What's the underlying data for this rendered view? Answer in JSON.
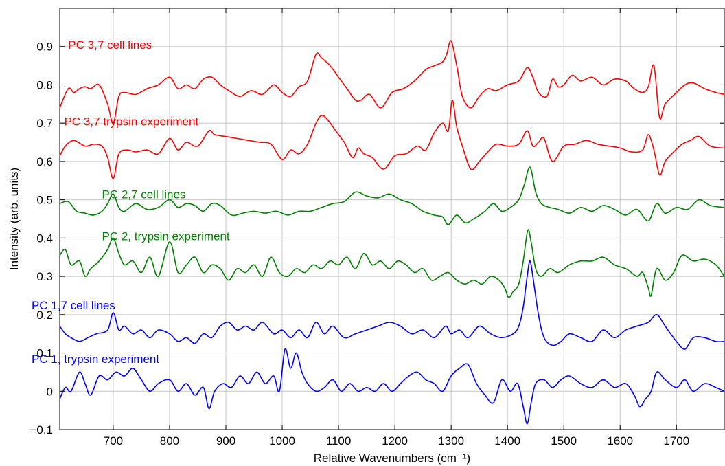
{
  "chart_data": {
    "type": "line",
    "xlabel": "Relative Wavenumbers (cm⁻¹)",
    "ylabel": "Intensity (arb. units)",
    "xlim": [
      605,
      1785
    ],
    "ylim": [
      -0.1,
      1.0
    ],
    "xticks": [
      700,
      800,
      900,
      1000,
      1100,
      1200,
      1300,
      1400,
      1500,
      1600,
      1700
    ],
    "xtick_labels": [
      "700",
      "800",
      "900",
      "1000",
      "1100",
      "1200",
      "1300",
      "1400",
      "1500",
      "1600",
      "1700"
    ],
    "yticks": [
      -0.1,
      0,
      0.1,
      0.2,
      0.3,
      0.4,
      0.5,
      0.6,
      0.7,
      0.8,
      0.9
    ],
    "ytick_labels": [
      "−0.1",
      "0",
      "0.1",
      "0.2",
      "0.3",
      "0.4",
      "0.5",
      "0.6",
      "0.7",
      "0.8",
      "0.9"
    ],
    "grid": true,
    "colors": {
      "red": "#ff0000",
      "green": "#008000",
      "blue": "#0000ff"
    },
    "series": [
      {
        "name": "PC 3,7 cell lines",
        "color": "red",
        "x": [
          605,
          620,
          630,
          640,
          650,
          660,
          675,
          690,
          700,
          710,
          720,
          740,
          760,
          780,
          800,
          815,
          830,
          845,
          860,
          875,
          890,
          905,
          925,
          945,
          965,
          985,
          1000,
          1015,
          1030,
          1045,
          1060,
          1070,
          1085,
          1100,
          1115,
          1130,
          1140,
          1155,
          1175,
          1195,
          1215,
          1235,
          1255,
          1270,
          1285,
          1292,
          1300,
          1310,
          1320,
          1335,
          1350,
          1365,
          1380,
          1400,
          1420,
          1435,
          1445,
          1455,
          1470,
          1480,
          1490,
          1500,
          1515,
          1530,
          1550,
          1570,
          1590,
          1610,
          1625,
          1640,
          1650,
          1660,
          1670,
          1680,
          1700,
          1715,
          1730,
          1750,
          1770,
          1785
        ],
        "y": [
          0.74,
          0.79,
          0.78,
          0.79,
          0.795,
          0.79,
          0.8,
          0.75,
          0.7,
          0.77,
          0.78,
          0.775,
          0.79,
          0.8,
          0.82,
          0.79,
          0.8,
          0.79,
          0.815,
          0.82,
          0.8,
          0.785,
          0.77,
          0.785,
          0.775,
          0.8,
          0.78,
          0.77,
          0.795,
          0.81,
          0.88,
          0.87,
          0.85,
          0.82,
          0.79,
          0.76,
          0.76,
          0.775,
          0.74,
          0.78,
          0.79,
          0.81,
          0.84,
          0.85,
          0.86,
          0.88,
          0.915,
          0.85,
          0.77,
          0.74,
          0.77,
          0.79,
          0.785,
          0.8,
          0.81,
          0.845,
          0.82,
          0.78,
          0.77,
          0.815,
          0.795,
          0.8,
          0.825,
          0.81,
          0.82,
          0.8,
          0.815,
          0.81,
          0.79,
          0.78,
          0.795,
          0.85,
          0.715,
          0.75,
          0.78,
          0.8,
          0.805,
          0.79,
          0.78,
          0.775
        ]
      },
      {
        "name": "PC 3,7 trypsin experiment",
        "color": "red",
        "x": [
          605,
          615,
          630,
          650,
          665,
          680,
          690,
          700,
          710,
          725,
          740,
          760,
          780,
          800,
          815,
          830,
          850,
          870,
          880,
          900,
          920,
          940,
          960,
          980,
          1000,
          1015,
          1030,
          1045,
          1060,
          1070,
          1080,
          1095,
          1110,
          1125,
          1135,
          1145,
          1160,
          1180,
          1200,
          1220,
          1240,
          1255,
          1270,
          1285,
          1295,
          1302,
          1310,
          1320,
          1335,
          1350,
          1365,
          1380,
          1400,
          1420,
          1435,
          1445,
          1455,
          1465,
          1480,
          1500,
          1520,
          1540,
          1560,
          1580,
          1600,
          1620,
          1640,
          1650,
          1660,
          1670,
          1680,
          1695,
          1710,
          1725,
          1740,
          1760,
          1785
        ],
        "y": [
          0.615,
          0.64,
          0.655,
          0.64,
          0.645,
          0.64,
          0.61,
          0.555,
          0.62,
          0.63,
          0.625,
          0.63,
          0.62,
          0.66,
          0.63,
          0.65,
          0.64,
          0.68,
          0.67,
          0.665,
          0.66,
          0.655,
          0.65,
          0.645,
          0.605,
          0.63,
          0.62,
          0.645,
          0.7,
          0.72,
          0.71,
          0.68,
          0.65,
          0.61,
          0.635,
          0.62,
          0.61,
          0.58,
          0.615,
          0.62,
          0.64,
          0.63,
          0.675,
          0.7,
          0.68,
          0.76,
          0.69,
          0.64,
          0.58,
          0.6,
          0.625,
          0.645,
          0.64,
          0.645,
          0.68,
          0.64,
          0.65,
          0.66,
          0.6,
          0.64,
          0.645,
          0.655,
          0.645,
          0.64,
          0.635,
          0.625,
          0.63,
          0.67,
          0.63,
          0.565,
          0.6,
          0.625,
          0.645,
          0.655,
          0.665,
          0.64,
          0.635
        ]
      },
      {
        "name": "PC 2,7 cell lines",
        "color": "green",
        "x": [
          605,
          620,
          635,
          650,
          665,
          680,
          690,
          700,
          710,
          720,
          740,
          760,
          780,
          800,
          815,
          830,
          845,
          860,
          875,
          890,
          910,
          930,
          950,
          970,
          990,
          1010,
          1030,
          1050,
          1070,
          1090,
          1110,
          1130,
          1150,
          1170,
          1190,
          1210,
          1230,
          1250,
          1270,
          1285,
          1295,
          1310,
          1325,
          1340,
          1360,
          1375,
          1390,
          1405,
          1420,
          1430,
          1440,
          1450,
          1460,
          1475,
          1490,
          1510,
          1530,
          1550,
          1570,
          1590,
          1610,
          1630,
          1650,
          1665,
          1680,
          1700,
          1720,
          1740,
          1760,
          1785
        ],
        "y": [
          0.49,
          0.495,
          0.47,
          0.465,
          0.46,
          0.47,
          0.49,
          0.515,
          0.48,
          0.47,
          0.49,
          0.475,
          0.48,
          0.5,
          0.48,
          0.49,
          0.485,
          0.47,
          0.49,
          0.485,
          0.46,
          0.465,
          0.47,
          0.465,
          0.47,
          0.46,
          0.47,
          0.47,
          0.48,
          0.49,
          0.495,
          0.52,
          0.51,
          0.505,
          0.515,
          0.5,
          0.49,
          0.47,
          0.46,
          0.455,
          0.435,
          0.46,
          0.44,
          0.45,
          0.47,
          0.49,
          0.47,
          0.48,
          0.5,
          0.54,
          0.585,
          0.52,
          0.49,
          0.48,
          0.475,
          0.465,
          0.48,
          0.47,
          0.485,
          0.475,
          0.46,
          0.475,
          0.445,
          0.49,
          0.465,
          0.48,
          0.475,
          0.5,
          0.485,
          0.48
        ]
      },
      {
        "name": "PC 2, trypsin experiment",
        "color": "green",
        "x": [
          605,
          615,
          625,
          640,
          650,
          660,
          675,
          690,
          700,
          710,
          720,
          735,
          750,
          765,
          780,
          800,
          815,
          830,
          845,
          860,
          875,
          890,
          905,
          920,
          935,
          950,
          965,
          980,
          995,
          1010,
          1025,
          1040,
          1055,
          1070,
          1085,
          1100,
          1115,
          1130,
          1145,
          1160,
          1175,
          1190,
          1205,
          1220,
          1235,
          1250,
          1265,
          1280,
          1295,
          1310,
          1325,
          1340,
          1355,
          1370,
          1385,
          1395,
          1402,
          1410,
          1420,
          1428,
          1436,
          1442,
          1450,
          1460,
          1475,
          1490,
          1510,
          1530,
          1550,
          1570,
          1590,
          1610,
          1630,
          1640,
          1650,
          1655,
          1665,
          1680,
          1695,
          1710,
          1730,
          1750,
          1770,
          1785
        ],
        "y": [
          0.355,
          0.37,
          0.33,
          0.34,
          0.3,
          0.32,
          0.34,
          0.37,
          0.4,
          0.36,
          0.33,
          0.34,
          0.31,
          0.35,
          0.3,
          0.39,
          0.31,
          0.33,
          0.35,
          0.31,
          0.33,
          0.32,
          0.29,
          0.32,
          0.31,
          0.33,
          0.3,
          0.35,
          0.31,
          0.3,
          0.32,
          0.31,
          0.33,
          0.32,
          0.34,
          0.33,
          0.35,
          0.32,
          0.36,
          0.33,
          0.34,
          0.32,
          0.34,
          0.33,
          0.31,
          0.32,
          0.29,
          0.3,
          0.31,
          0.29,
          0.28,
          0.29,
          0.28,
          0.3,
          0.29,
          0.27,
          0.245,
          0.26,
          0.28,
          0.34,
          0.42,
          0.39,
          0.32,
          0.3,
          0.32,
          0.31,
          0.33,
          0.34,
          0.34,
          0.35,
          0.33,
          0.32,
          0.3,
          0.31,
          0.27,
          0.25,
          0.32,
          0.29,
          0.31,
          0.355,
          0.34,
          0.345,
          0.33,
          0.3
        ]
      },
      {
        "name": "PC 1,7 cell lines",
        "color": "blue",
        "x": [
          605,
          615,
          625,
          640,
          655,
          670,
          690,
          700,
          710,
          720,
          735,
          750,
          765,
          780,
          800,
          815,
          830,
          845,
          860,
          875,
          890,
          905,
          920,
          935,
          950,
          965,
          985,
          1000,
          1015,
          1030,
          1045,
          1060,
          1075,
          1090,
          1110,
          1130,
          1150,
          1170,
          1190,
          1210,
          1230,
          1250,
          1270,
          1290,
          1300,
          1315,
          1330,
          1350,
          1370,
          1390,
          1410,
          1420,
          1428,
          1435,
          1440,
          1446,
          1455,
          1465,
          1480,
          1495,
          1510,
          1530,
          1550,
          1570,
          1590,
          1610,
          1630,
          1650,
          1665,
          1680,
          1700,
          1715,
          1730,
          1750,
          1770,
          1785
        ],
        "y": [
          0.17,
          0.15,
          0.14,
          0.13,
          0.14,
          0.15,
          0.16,
          0.205,
          0.16,
          0.17,
          0.15,
          0.16,
          0.14,
          0.16,
          0.15,
          0.13,
          0.14,
          0.125,
          0.15,
          0.14,
          0.17,
          0.18,
          0.16,
          0.17,
          0.16,
          0.18,
          0.15,
          0.16,
          0.14,
          0.16,
          0.14,
          0.18,
          0.15,
          0.17,
          0.14,
          0.15,
          0.16,
          0.17,
          0.18,
          0.17,
          0.15,
          0.16,
          0.14,
          0.17,
          0.15,
          0.16,
          0.14,
          0.17,
          0.15,
          0.14,
          0.15,
          0.17,
          0.22,
          0.3,
          0.34,
          0.29,
          0.2,
          0.14,
          0.12,
          0.13,
          0.15,
          0.14,
          0.13,
          0.16,
          0.14,
          0.16,
          0.17,
          0.18,
          0.2,
          0.17,
          0.13,
          0.11,
          0.14,
          0.14,
          0.13,
          0.13
        ]
      },
      {
        "name": "PC 1, trypsin experiment",
        "color": "blue",
        "x": [
          605,
          615,
          625,
          640,
          650,
          660,
          675,
          690,
          705,
          720,
          735,
          750,
          765,
          780,
          800,
          815,
          830,
          845,
          860,
          870,
          880,
          895,
          910,
          925,
          940,
          955,
          970,
          985,
          995,
          1005,
          1015,
          1025,
          1035,
          1045,
          1060,
          1075,
          1090,
          1105,
          1120,
          1135,
          1150,
          1165,
          1180,
          1195,
          1210,
          1225,
          1240,
          1255,
          1270,
          1285,
          1300,
          1315,
          1330,
          1345,
          1360,
          1375,
          1390,
          1405,
          1418,
          1428,
          1435,
          1442,
          1450,
          1465,
          1480,
          1495,
          1510,
          1530,
          1550,
          1570,
          1590,
          1610,
          1625,
          1635,
          1645,
          1655,
          1665,
          1680,
          1700,
          1715,
          1730,
          1750,
          1770,
          1785
        ],
        "y": [
          -0.02,
          0.01,
          0.0,
          0.05,
          0.02,
          -0.01,
          0.04,
          0.03,
          0.05,
          0.04,
          0.06,
          0.03,
          0.0,
          0.02,
          0.03,
          0.0,
          0.02,
          -0.01,
          0.01,
          -0.045,
          0.0,
          0.02,
          0.01,
          0.04,
          0.02,
          0.05,
          0.02,
          0.04,
          0.0,
          0.11,
          0.06,
          0.1,
          0.05,
          0.02,
          0.0,
          0.01,
          0.03,
          0.0,
          0.02,
          0.0,
          0.01,
          0.0,
          0.02,
          0.0,
          0.02,
          0.04,
          0.05,
          0.03,
          0.02,
          0.0,
          0.04,
          0.06,
          0.07,
          0.02,
          -0.01,
          -0.03,
          0.03,
          0.0,
          0.02,
          -0.04,
          -0.085,
          -0.03,
          0.02,
          0.03,
          0.01,
          0.03,
          0.04,
          0.02,
          0.01,
          0.03,
          0.01,
          0.02,
          -0.01,
          -0.04,
          -0.02,
          0.0,
          0.05,
          0.03,
          0.01,
          0.03,
          0.0,
          0.02,
          0.01,
          0.0
        ]
      }
    ],
    "annotations": [
      {
        "text": "PC 3,7 cell lines",
        "x": 620,
        "y": 0.905,
        "color": "red"
      },
      {
        "text": "PC 3,7 trypsin experiment",
        "x": 613,
        "y": 0.705,
        "color": "red"
      },
      {
        "text": "PC 2,7 cell lines",
        "x": 680,
        "y": 0.515,
        "color": "green"
      },
      {
        "text": "PC 2, trypsin experiment",
        "x": 680,
        "y": 0.405,
        "color": "green"
      },
      {
        "text": "PC 1,7 cell lines",
        "x": 555,
        "y": 0.225,
        "color": "blue"
      },
      {
        "text": "PC 1, trypsin experiment",
        "x": 555,
        "y": 0.085,
        "color": "blue"
      }
    ]
  }
}
